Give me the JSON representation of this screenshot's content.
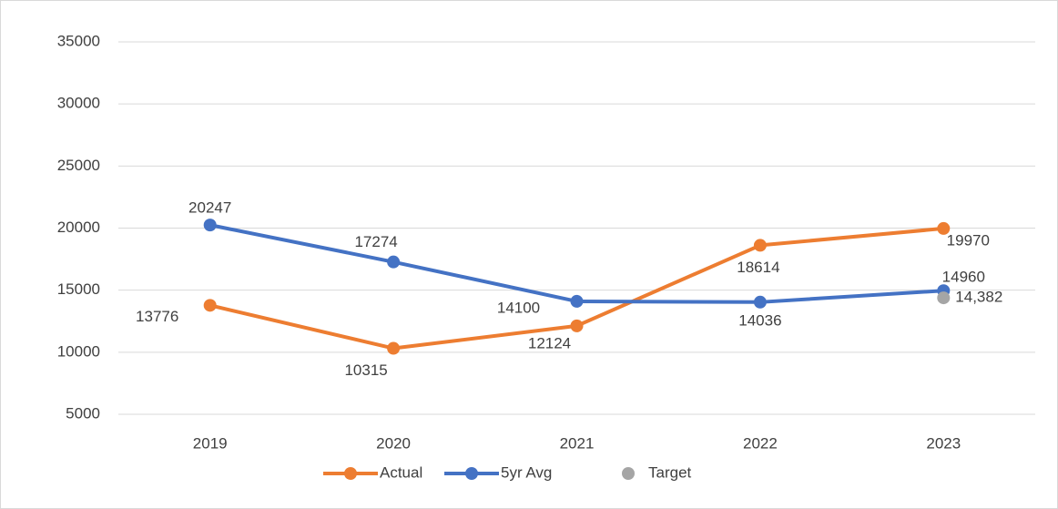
{
  "chart_data": {
    "type": "line",
    "categories": [
      "2019",
      "2020",
      "2021",
      "2022",
      "2023"
    ],
    "series": [
      {
        "name": "Actual",
        "color": "#ED7D31",
        "values": [
          13776,
          10315,
          12124,
          18614,
          19970
        ]
      },
      {
        "name": "5yr Avg",
        "color": "#4472C4",
        "values": [
          20247,
          17274,
          14100,
          14036,
          14960
        ]
      },
      {
        "name": "Target",
        "color": "#A5A5A5",
        "values": [
          null,
          null,
          null,
          null,
          14382
        ],
        "value_labels": [
          null,
          null,
          null,
          null,
          "14,382"
        ],
        "marker_only": true
      }
    ],
    "ylim": [
      5000,
      35000
    ],
    "yticks": [
      5000,
      10000,
      15000,
      20000,
      25000,
      30000,
      35000
    ],
    "grid": true,
    "legend": "bottom"
  }
}
